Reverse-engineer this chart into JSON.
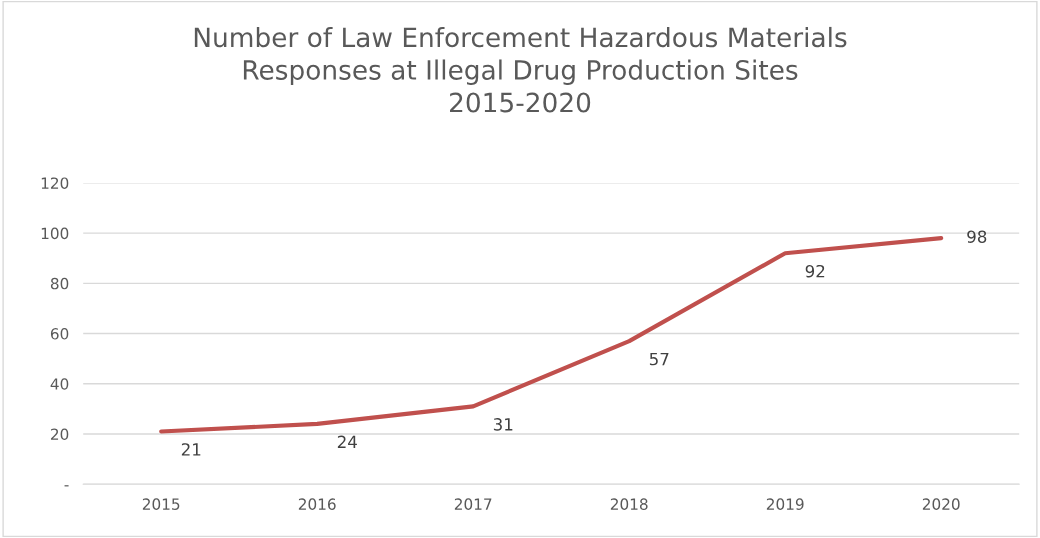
{
  "chart_data": {
    "type": "line",
    "title": "Number of Law Enforcement Hazardous Materials\nResponses at Illegal Drug Production Sites\n2015-2020",
    "categories": [
      "2015",
      "2016",
      "2017",
      "2018",
      "2019",
      "2020"
    ],
    "series": [
      {
        "color": "#c0504d",
        "values": [
          21,
          24,
          31,
          57,
          92,
          98
        ]
      }
    ],
    "ylim": [
      0,
      120
    ],
    "yticks": [
      {
        "value": 0,
        "label": "-"
      },
      20,
      40,
      60,
      80,
      100,
      120
    ],
    "grid": "y",
    "data_labels": true,
    "marker": "none",
    "line_style": "solid"
  }
}
